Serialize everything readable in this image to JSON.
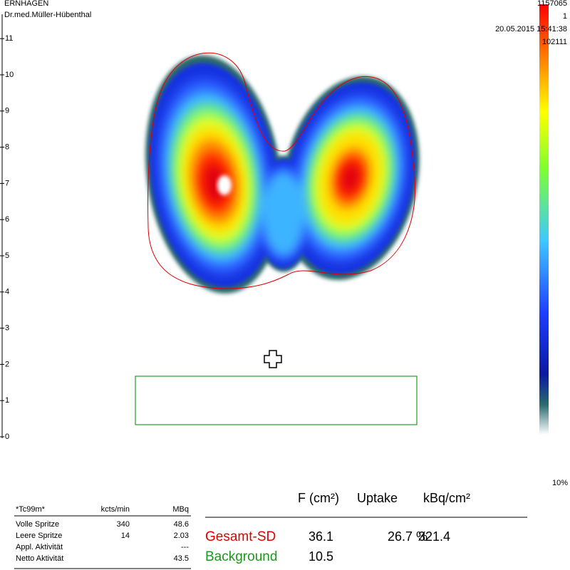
{
  "header": {
    "site": "ERNHAGEN",
    "doctor": "Dr.med.Müller-Hübenthal"
  },
  "info": [
    "1157065",
    "1",
    "20.05.2015 15:41:38",
    "102111"
  ],
  "ruler": [
    0,
    1,
    2,
    3,
    4,
    5,
    6,
    7,
    8,
    9,
    10,
    11
  ],
  "scale_label": "10%",
  "activity_table": {
    "header": [
      "*Tc99m*",
      "kcts/min",
      "MBq"
    ],
    "rows": [
      [
        "Volle Spritze",
        "340",
        "48.6"
      ],
      [
        "Leere Spritze",
        "14",
        "2.03"
      ],
      [
        "Appl. Aktivität",
        "",
        "---"
      ],
      [
        "Netto Aktivität",
        "",
        "43.5"
      ]
    ]
  },
  "results": {
    "header": [
      "F (cm²)",
      "Uptake",
      "kBq/cm²"
    ],
    "rows": [
      [
        "Gesamt-SD",
        "36.1",
        "26.7 %",
        "321.4"
      ],
      [
        "Background",
        "10.5"
      ]
    ]
  }
}
